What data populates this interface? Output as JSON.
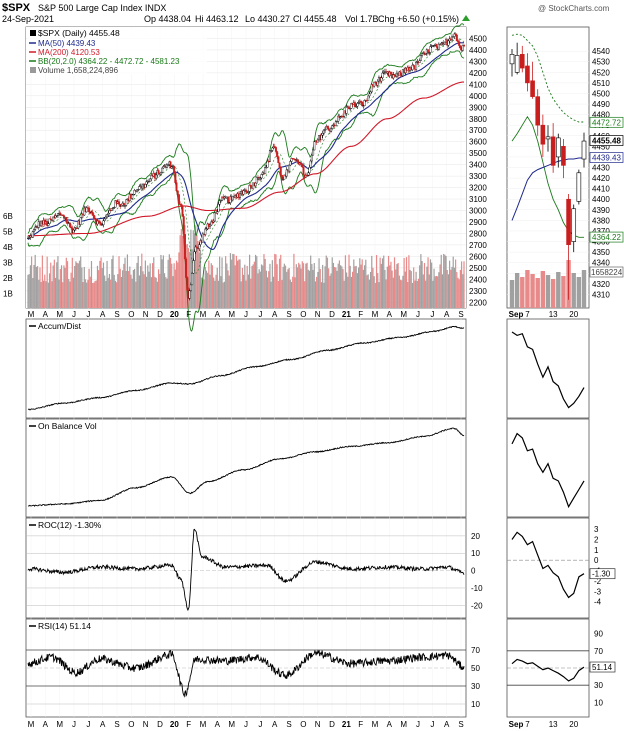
{
  "header": {
    "symbol": "$SPX",
    "description": "S&P 500 Large Cap Index  INDX",
    "watermark": "@ StockCharts.com",
    "date": "24-Sep-2021",
    "quote": {
      "open": "Op 4438.04",
      "high": "Hi 4463.12",
      "low": "Lo 4430.27",
      "close": "Cl 4455.48",
      "volume": "Vol 1.7B",
      "change": "Chg +6.50 (+0.15%)"
    },
    "up_color": "#2a9d2a"
  },
  "chart_data": [
    {
      "type": "candlestick",
      "name": "price",
      "series_labels": {
        "price": "$SPX (Daily) 4455.48",
        "ma50": "MA(50) 4439.43",
        "ma200": "MA(200) 4120.53",
        "bb": "BB(20,2.0) 4364.22 - 4472.72 - 4581.23",
        "volume": "Volume 1,658,224,896"
      },
      "colors": {
        "ma50": "#1f2a8c",
        "ma200": "#d01a2a",
        "bb": "#1a7a1a",
        "volume_up": "#a0a0a0",
        "volume_down": "#e88a8a"
      },
      "ylim": [
        2150,
        4600
      ],
      "y_ticks": [
        "4500",
        "4400",
        "4300",
        "4200",
        "4100",
        "4000",
        "3900",
        "3800",
        "3700",
        "3600",
        "3500",
        "3400",
        "3300",
        "3200",
        "3100",
        "3000",
        "2900",
        "2800",
        "2700",
        "2600",
        "2500",
        "2400",
        "2300",
        "2200"
      ],
      "volume_ticks": [
        "6B",
        "5B",
        "4B",
        "3B",
        "2B",
        "1B"
      ],
      "x_ticks": [
        "M",
        "A",
        "M",
        "J",
        "J",
        "A",
        "S",
        "O",
        "N",
        "D",
        "20",
        "F",
        "M",
        "A",
        "M",
        "J",
        "J",
        "A",
        "S",
        "O",
        "N",
        "D",
        "21",
        "F",
        "M",
        "A",
        "M",
        "J",
        "J",
        "A",
        "S"
      ],
      "anchors": [
        {
          "t": 0,
          "v": 2750
        },
        {
          "t": 25,
          "v": 2900
        },
        {
          "t": 55,
          "v": 2950
        },
        {
          "t": 75,
          "v": 2850
        },
        {
          "t": 100,
          "v": 3000
        },
        {
          "t": 120,
          "v": 2900
        },
        {
          "t": 150,
          "v": 3050
        },
        {
          "t": 185,
          "v": 3180
        },
        {
          "t": 215,
          "v": 3330
        },
        {
          "t": 240,
          "v": 3390
        },
        {
          "t": 255,
          "v": 3050
        },
        {
          "t": 268,
          "v": 2250
        },
        {
          "t": 280,
          "v": 2650
        },
        {
          "t": 300,
          "v": 2870
        },
        {
          "t": 330,
          "v": 3100
        },
        {
          "t": 360,
          "v": 3150
        },
        {
          "t": 395,
          "v": 3350
        },
        {
          "t": 410,
          "v": 3550
        },
        {
          "t": 425,
          "v": 3300
        },
        {
          "t": 445,
          "v": 3450
        },
        {
          "t": 465,
          "v": 3300
        },
        {
          "t": 480,
          "v": 3600
        },
        {
          "t": 500,
          "v": 3700
        },
        {
          "t": 520,
          "v": 3820
        },
        {
          "t": 540,
          "v": 3900
        },
        {
          "t": 560,
          "v": 3950
        },
        {
          "t": 580,
          "v": 4100
        },
        {
          "t": 600,
          "v": 4200
        },
        {
          "t": 620,
          "v": 4170
        },
        {
          "t": 640,
          "v": 4250
        },
        {
          "t": 660,
          "v": 4350
        },
        {
          "t": 680,
          "v": 4420
        },
        {
          "t": 700,
          "v": 4480
        },
        {
          "t": 712,
          "v": 4530
        },
        {
          "t": 723,
          "v": 4400
        },
        {
          "t": 728,
          "v": 4455
        }
      ],
      "ma200_anchors": [
        {
          "t": 0,
          "v": 2780
        },
        {
          "t": 100,
          "v": 2800
        },
        {
          "t": 200,
          "v": 2950
        },
        {
          "t": 260,
          "v": 3040
        },
        {
          "t": 300,
          "v": 3000
        },
        {
          "t": 360,
          "v": 3020
        },
        {
          "t": 420,
          "v": 3160
        },
        {
          "t": 480,
          "v": 3320
        },
        {
          "t": 540,
          "v": 3560
        },
        {
          "t": 600,
          "v": 3800
        },
        {
          "t": 660,
          "v": 3980
        },
        {
          "t": 728,
          "v": 4120
        }
      ]
    },
    {
      "type": "candlestick",
      "name": "price-zoom",
      "ylim": [
        4300,
        4560
      ],
      "y_ticks": [
        "4540",
        "4530",
        "4520",
        "4510",
        "4500",
        "4490",
        "4480",
        "4470",
        "4460",
        "4450",
        "4440",
        "4430",
        "4420",
        "4410",
        "4400",
        "4390",
        "4380",
        "4370",
        "4360",
        "4350",
        "4340",
        "4330",
        "4320",
        "4310"
      ],
      "value_tags": [
        "4472.72",
        "4455.48",
        "4439.43",
        "4364.22",
        "1658224"
      ],
      "x_ticks": [
        "Sep",
        "7",
        "13",
        "20"
      ],
      "candles": [
        {
          "o": 4528,
          "h": 4542,
          "l": 4516,
          "c": 4537
        },
        {
          "o": 4520,
          "h": 4548,
          "l": 4518,
          "c": 4536
        },
        {
          "o": 4537,
          "h": 4545,
          "l": 4520,
          "c": 4524
        },
        {
          "o": 4526,
          "h": 4538,
          "l": 4502,
          "c": 4510
        },
        {
          "o": 4512,
          "h": 4530,
          "l": 4495,
          "c": 4497
        },
        {
          "o": 4497,
          "h": 4504,
          "l": 4460,
          "c": 4470
        },
        {
          "o": 4470,
          "h": 4480,
          "l": 4440,
          "c": 4452
        },
        {
          "o": 4457,
          "h": 4470,
          "l": 4445,
          "c": 4459
        },
        {
          "o": 4459,
          "h": 4472,
          "l": 4425,
          "c": 4432
        },
        {
          "o": 4440,
          "h": 4462,
          "l": 4430,
          "c": 4458
        },
        {
          "o": 4450,
          "h": 4457,
          "l": 4420,
          "c": 4432
        },
        {
          "o": 4400,
          "h": 4405,
          "l": 4305,
          "c": 4357
        },
        {
          "o": 4360,
          "h": 4395,
          "l": 4350,
          "c": 4391
        },
        {
          "o": 4398,
          "h": 4428,
          "l": 4395,
          "c": 4425
        },
        {
          "o": 4438,
          "h": 4463,
          "l": 4430,
          "c": 4455
        }
      ]
    },
    {
      "type": "line",
      "name": "accum-dist",
      "label": "Accum/Dist",
      "anchors": [
        {
          "t": 0,
          "v": 0.05
        },
        {
          "t": 60,
          "v": 0.12
        },
        {
          "t": 120,
          "v": 0.18
        },
        {
          "t": 180,
          "v": 0.26
        },
        {
          "t": 240,
          "v": 0.34
        },
        {
          "t": 270,
          "v": 0.33
        },
        {
          "t": 320,
          "v": 0.42
        },
        {
          "t": 380,
          "v": 0.52
        },
        {
          "t": 440,
          "v": 0.6
        },
        {
          "t": 500,
          "v": 0.7
        },
        {
          "t": 560,
          "v": 0.78
        },
        {
          "t": 620,
          "v": 0.84
        },
        {
          "t": 680,
          "v": 0.91
        },
        {
          "t": 712,
          "v": 0.96
        },
        {
          "t": 728,
          "v": 0.94
        }
      ],
      "zoom": [
        0.92,
        0.88,
        0.9,
        0.75,
        0.72,
        0.55,
        0.4,
        0.52,
        0.35,
        0.3,
        0.15,
        0.05,
        0.1,
        0.18,
        0.28
      ]
    },
    {
      "type": "line",
      "name": "on-balance-vol",
      "label": "On Balance Vol",
      "anchors": [
        {
          "t": 0,
          "v": 0.08
        },
        {
          "t": 60,
          "v": 0.1
        },
        {
          "t": 120,
          "v": 0.14
        },
        {
          "t": 180,
          "v": 0.28
        },
        {
          "t": 240,
          "v": 0.4
        },
        {
          "t": 270,
          "v": 0.22
        },
        {
          "t": 300,
          "v": 0.35
        },
        {
          "t": 360,
          "v": 0.48
        },
        {
          "t": 420,
          "v": 0.6
        },
        {
          "t": 480,
          "v": 0.68
        },
        {
          "t": 540,
          "v": 0.74
        },
        {
          "t": 600,
          "v": 0.78
        },
        {
          "t": 660,
          "v": 0.85
        },
        {
          "t": 712,
          "v": 0.94
        },
        {
          "t": 728,
          "v": 0.86
        }
      ],
      "zoom": [
        0.78,
        0.9,
        0.85,
        0.7,
        0.72,
        0.55,
        0.45,
        0.55,
        0.38,
        0.35,
        0.22,
        0.05,
        0.15,
        0.25,
        0.35
      ]
    },
    {
      "type": "line",
      "name": "roc",
      "label": "ROC(12) -1.30%",
      "ylim": [
        -25,
        28
      ],
      "y_ticks": [
        "20",
        "10",
        "0",
        "-10",
        "-20"
      ],
      "zoom_ylim": [
        -5,
        3.5
      ],
      "zoom_ticks": [
        "3",
        "2",
        "1",
        "0",
        "-1",
        "-2",
        "-3",
        "-4"
      ],
      "zoom_tag": "-1.30",
      "anchors": [
        {
          "t": 0,
          "v": 1
        },
        {
          "t": 60,
          "v": -1
        },
        {
          "t": 120,
          "v": 2
        },
        {
          "t": 180,
          "v": 1
        },
        {
          "t": 240,
          "v": 3
        },
        {
          "t": 255,
          "v": -5
        },
        {
          "t": 268,
          "v": -22
        },
        {
          "t": 278,
          "v": 24
        },
        {
          "t": 290,
          "v": 8
        },
        {
          "t": 330,
          "v": 2
        },
        {
          "t": 400,
          "v": 3
        },
        {
          "t": 430,
          "v": -6
        },
        {
          "t": 480,
          "v": 5
        },
        {
          "t": 540,
          "v": 1
        },
        {
          "t": 600,
          "v": 2
        },
        {
          "t": 660,
          "v": 1
        },
        {
          "t": 700,
          "v": 2
        },
        {
          "t": 728,
          "v": -1.3
        }
      ],
      "zoom": [
        2.0,
        2.7,
        2.3,
        1.5,
        1.8,
        0.5,
        -0.8,
        -0.5,
        -1.2,
        -1.6,
        -2.8,
        -3.6,
        -3.2,
        -1.6,
        -1.3
      ]
    },
    {
      "type": "line",
      "name": "rsi",
      "label": "RSI(14) 51.14",
      "ylim": [
        0,
        100
      ],
      "y_ticks": [
        "70",
        "50",
        "30",
        "10"
      ],
      "zoom_ticks": [
        "90",
        "70",
        "50",
        "30",
        "10"
      ],
      "zoom_tag": "51.14",
      "anchors": [
        {
          "t": 0,
          "v": 55
        },
        {
          "t": 40,
          "v": 62
        },
        {
          "t": 80,
          "v": 45
        },
        {
          "t": 120,
          "v": 60
        },
        {
          "t": 180,
          "v": 50
        },
        {
          "t": 240,
          "v": 65
        },
        {
          "t": 262,
          "v": 22
        },
        {
          "t": 280,
          "v": 60
        },
        {
          "t": 330,
          "v": 58
        },
        {
          "t": 380,
          "v": 62
        },
        {
          "t": 430,
          "v": 42
        },
        {
          "t": 480,
          "v": 66
        },
        {
          "t": 540,
          "v": 55
        },
        {
          "t": 600,
          "v": 58
        },
        {
          "t": 660,
          "v": 62
        },
        {
          "t": 700,
          "v": 64
        },
        {
          "t": 728,
          "v": 51
        }
      ],
      "zoom": [
        55,
        60,
        58,
        55,
        56,
        52,
        48,
        50,
        47,
        44,
        40,
        35,
        38,
        47,
        51
      ]
    }
  ]
}
